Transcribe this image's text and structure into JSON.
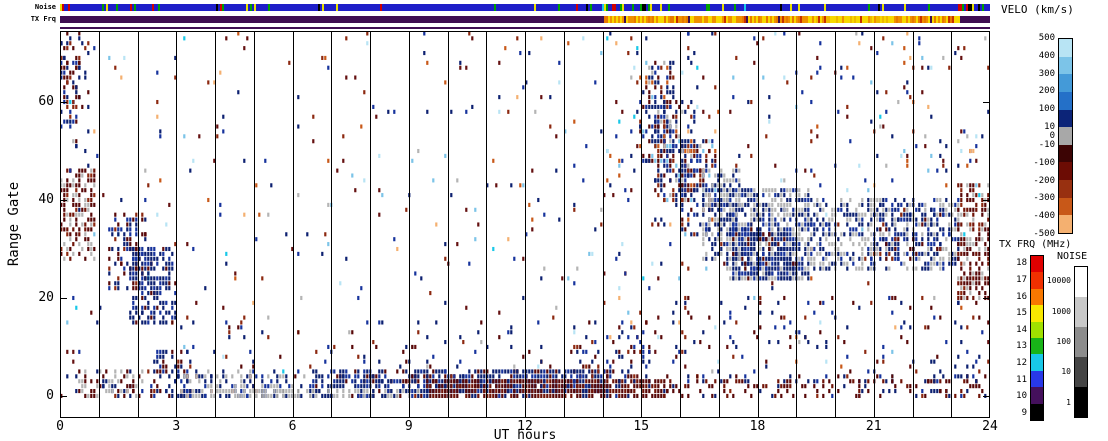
{
  "chart_data": {
    "type": "scatter",
    "title": "",
    "xlabel": "UT hours",
    "ylabel": "Range Gate",
    "xlim": [
      0,
      24
    ],
    "ylim": [
      -4,
      74
    ],
    "xticks": [
      "0",
      "3",
      "6",
      "9",
      "12",
      "15",
      "18",
      "21",
      "24"
    ],
    "xtick_hours": [
      0,
      3,
      6,
      9,
      12,
      15,
      18,
      21,
      24
    ],
    "yticks": [
      0,
      20,
      40,
      60
    ],
    "grid": "vertical black line at every UT hour",
    "legend_position": "right",
    "seed": 20240613,
    "palettes": {
      "bg": [
        [
          "#16329c",
          3
        ],
        [
          "#0c2070",
          3
        ],
        [
          "#641010",
          3
        ],
        [
          "#8c2810",
          2
        ],
        [
          "#7cc4e8",
          1.2
        ],
        [
          "#b8e4f4",
          0.8
        ],
        [
          "#c85818",
          1
        ],
        [
          "#f4b070",
          0.8
        ],
        [
          "#b4b4b4",
          1
        ],
        [
          "#18c8e8",
          0.4
        ]
      ],
      "navy": [
        [
          "#0c2070",
          6
        ],
        [
          "#16329c",
          3
        ],
        [
          "#2848a8",
          1
        ]
      ],
      "gray": [
        [
          "#b4b4b4",
          8
        ],
        [
          "#9c9c9c",
          2
        ]
      ],
      "navyRed": [
        [
          "#0c2070",
          4
        ],
        [
          "#16329c",
          2
        ],
        [
          "#580808",
          3
        ],
        [
          "#8c2810",
          1
        ]
      ],
      "redHeavy": [
        [
          "#580808",
          6
        ],
        [
          "#701408",
          3
        ],
        [
          "#0c2070",
          1
        ]
      ],
      "navyHeavy": [
        [
          "#0c2070",
          6
        ],
        [
          "#16329c",
          2.5
        ],
        [
          "#580808",
          1.5
        ]
      ],
      "grayRed": [
        [
          "#b4b4b4",
          6
        ],
        [
          "#580808",
          2.5
        ],
        [
          "#0c2070",
          1.5
        ]
      ],
      "grayNavy": [
        [
          "#b4b4b4",
          5
        ],
        [
          "#0c2070",
          3.5
        ],
        [
          "#16329c",
          1.5
        ]
      ],
      "redGray": [
        [
          "#580808",
          4.5
        ],
        [
          "#701408",
          2
        ],
        [
          "#b4b4b4",
          3
        ],
        [
          "#8c2810",
          0.5
        ]
      ],
      "mixFeature": [
        [
          "#0c2070",
          4
        ],
        [
          "#16329c",
          1.5
        ],
        [
          "#580808",
          2.5
        ],
        [
          "#8c2810",
          1
        ],
        [
          "#7cc4e8",
          0.6
        ],
        [
          "#c85818",
          0.6
        ],
        [
          "#b4b4b4",
          0.8
        ]
      ]
    },
    "features": [
      {
        "x": [
          0,
          24
        ],
        "g": [
          4,
          74
        ],
        "d": 0.02,
        "p": "bg"
      },
      {
        "x": [
          0,
          24
        ],
        "g": [
          0,
          4
        ],
        "d": 0.12,
        "p": "navyRed"
      },
      {
        "x": [
          0,
          0.9
        ],
        "g": [
          28,
          46
        ],
        "d": 0.5,
        "p": "redGray"
      },
      {
        "x": [
          0,
          0.7
        ],
        "g": [
          46,
          74
        ],
        "d": 0.15,
        "p": "navyRed"
      },
      {
        "x": [
          0,
          0.5
        ],
        "g": [
          55,
          74
        ],
        "d": 0.3,
        "p": "navyRed"
      },
      {
        "x": [
          0.4,
          2.2
        ],
        "g": [
          0,
          5
        ],
        "d": 0.4,
        "p": "grayRed"
      },
      {
        "x": [
          1.3,
          2.2
        ],
        "g": [
          22,
          37
        ],
        "d": 0.45,
        "p": "navyRed"
      },
      {
        "x": [
          1.8,
          3.0
        ],
        "g": [
          15,
          30
        ],
        "d": 0.55,
        "p": "navyHeavy"
      },
      {
        "x": [
          2.4,
          3.4
        ],
        "g": [
          0,
          9
        ],
        "d": 0.35,
        "p": "navyRed"
      },
      {
        "x": [
          3,
          6.5
        ],
        "g": [
          0,
          5
        ],
        "d": 0.35,
        "p": "grayNavy"
      },
      {
        "x": [
          4,
          9.5
        ],
        "g": [
          0,
          1
        ],
        "d": 0.5,
        "p": "gray"
      },
      {
        "x": [
          6.5,
          9.5
        ],
        "g": [
          0,
          5
        ],
        "d": 0.55,
        "p": "navyHeavy"
      },
      {
        "x": [
          9.5,
          14.2
        ],
        "g": [
          1,
          5
        ],
        "d": 0.7,
        "p": "navyHeavy"
      },
      {
        "x": [
          9.5,
          15.6
        ],
        "g": [
          0,
          3
        ],
        "d": 0.8,
        "p": "redHeavy"
      },
      {
        "x": [
          15.6,
          24
        ],
        "g": [
          0,
          3
        ],
        "d": 0.2,
        "p": "redHeavy"
      },
      {
        "x": [
          3,
          16
        ],
        "g": [
          4,
          15
        ],
        "d": 0.05,
        "p": "navyRed"
      },
      {
        "x": [
          13.2,
          15.2
        ],
        "g": [
          3,
          12
        ],
        "d": 0.2,
        "p": "navyRed"
      },
      {
        "x": [
          15.0,
          15.8
        ],
        "g": [
          48,
          68
        ],
        "d": 0.45,
        "p": "mixFeature"
      },
      {
        "x": [
          15.4,
          16.4
        ],
        "g": [
          40,
          60
        ],
        "d": 0.5,
        "p": "mixFeature"
      },
      {
        "x": [
          16.1,
          16.9
        ],
        "g": [
          33,
          52
        ],
        "d": 0.45,
        "p": "mixFeature"
      },
      {
        "x": [
          16.6,
          17.5
        ],
        "g": [
          28,
          46
        ],
        "d": 0.5,
        "p": "grayNavy"
      },
      {
        "x": [
          17.2,
          19.3
        ],
        "g": [
          24,
          42
        ],
        "d": 0.7,
        "p": "grayNavy"
      },
      {
        "x": [
          17.4,
          19.0
        ],
        "g": [
          24,
          34
        ],
        "d": 0.5,
        "p": "navyHeavy"
      },
      {
        "x": [
          19.3,
          21.2
        ],
        "g": [
          26,
          40
        ],
        "d": 0.55,
        "p": "grayNavy"
      },
      {
        "x": [
          21.2,
          23.2
        ],
        "g": [
          26,
          40
        ],
        "d": 0.5,
        "p": "grayNavy"
      },
      {
        "x": [
          21.0,
          23.0
        ],
        "g": [
          28,
          38
        ],
        "d": 0.2,
        "p": "navyRed"
      },
      {
        "x": [
          23.2,
          24
        ],
        "g": [
          20,
          43
        ],
        "d": 0.55,
        "p": "redGray"
      },
      {
        "x": [
          16,
          24
        ],
        "g": [
          43,
          74
        ],
        "d": 0.04,
        "p": "bg"
      },
      {
        "x": [
          16,
          24
        ],
        "g": [
          3,
          20
        ],
        "d": 0.07,
        "p": "navyRed"
      },
      {
        "x": [
          14,
          16
        ],
        "g": [
          3,
          74
        ],
        "d": 0.03,
        "p": "bg"
      }
    ]
  },
  "strips": {
    "noise": {
      "label": "Noise",
      "base_color": "#1e1ec8",
      "tick_colors": [
        [
          "#00a000",
          3
        ],
        [
          "#e8e000",
          3
        ],
        [
          "#d00000",
          2
        ],
        [
          "#000000",
          1.5
        ],
        [
          "#18c8e8",
          0.5
        ]
      ],
      "tick_density": 0.09,
      "busy_zones": [
        [
          13.9,
          15.3
        ],
        [
          23.2,
          23.9
        ]
      ]
    },
    "tx": {
      "label": "TX Frq",
      "segments": [
        {
          "x": [
            0,
            14.05
          ],
          "color": "#3f0e52"
        },
        {
          "x": [
            14.05,
            23.25
          ],
          "color": "speckle"
        },
        {
          "x": [
            23.25,
            24
          ],
          "color": "#3f0e52"
        }
      ],
      "speckle_colors": [
        [
          "#f09000",
          4
        ],
        [
          "#f8d800",
          3
        ],
        [
          "#e87800",
          2
        ],
        [
          "#c83000",
          0.8
        ],
        [
          "#3f0e52",
          0.2
        ]
      ],
      "speckle_yellow_colors": [
        [
          "#f8d800",
          5
        ],
        [
          "#f0b800",
          2
        ],
        [
          "#f09000",
          1.5
        ],
        [
          "#c83000",
          0.3
        ]
      ],
      "yellow_zone": [
        19.4,
        21.6
      ]
    },
    "separator_color": "#3f0e52"
  },
  "colorbars": {
    "velocity": {
      "title": "VELO (km/s)",
      "segment_colors": [
        "#b8e4f4",
        "#7cc4e8",
        "#449ad8",
        "#2470c8",
        "#0c2478",
        "#a8a8a8",
        "#3c0404",
        "#6c0c04",
        "#983010",
        "#c85818",
        "#f4b070"
      ],
      "boundary_labels": [
        "500",
        "400",
        "300",
        "200",
        "100",
        "10",
        "-10",
        "-100",
        "-200",
        "-300",
        "-400",
        "-500"
      ],
      "center_labels": [
        {
          "text": "0",
          "frac": 0.5
        }
      ]
    },
    "tx_freq": {
      "title": "TX FRQ (MHz)",
      "segment_colors": [
        "#e00000",
        "#f03000",
        "#f87800",
        "#f8e800",
        "#a0e000",
        "#18b418",
        "#18c8e8",
        "#2838e8",
        "#44105c",
        "#000000"
      ],
      "labels": [
        "18",
        "17",
        "16",
        "15",
        "14",
        "13",
        "12",
        "11",
        "10",
        "9"
      ]
    },
    "noise": {
      "title": "NOISE",
      "segment_colors": [
        "#ffffff",
        "#c8c8c8",
        "#8c8c8c",
        "#444444",
        "#000000"
      ],
      "labels": [
        "10000",
        "1000",
        "100",
        "10",
        "1"
      ]
    }
  }
}
